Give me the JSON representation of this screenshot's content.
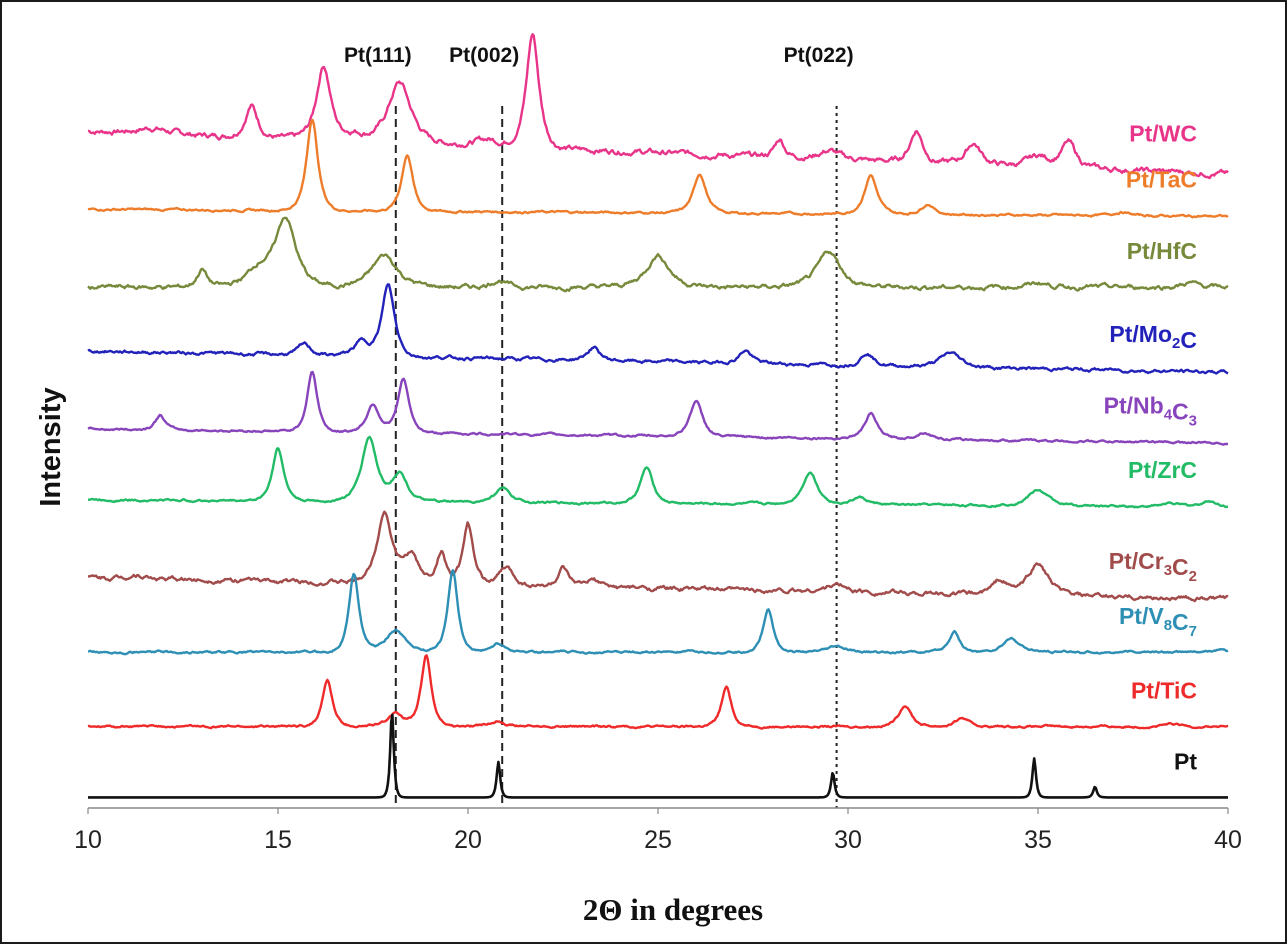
{
  "chart_data": {
    "type": "line",
    "title": "",
    "xlabel": "2Θ in degrees",
    "ylabel": "Intensity",
    "xlim": [
      10,
      40
    ],
    "x_ticks": [
      "10",
      "15",
      "20",
      "25",
      "30",
      "35",
      "40"
    ],
    "grid": false,
    "reference_lines": [
      {
        "label": "Pt(111)",
        "x": 18.1,
        "style": "dashed"
      },
      {
        "label": "Pt(002)",
        "x": 20.9,
        "style": "dashed"
      },
      {
        "label": "Pt(022)",
        "x": 29.7,
        "style": "dotted"
      }
    ],
    "series": [
      {
        "name": "Pt/WC",
        "label_parts": [
          {
            "t": "Pt/WC"
          }
        ],
        "color": "#e8358a",
        "baseline": 8.2,
        "end": 7.6,
        "noise": 0.05,
        "peaks": [
          [
            11.7,
            0.08,
            0.6
          ],
          [
            14.3,
            0.45,
            0.25
          ],
          [
            16.2,
            1.05,
            0.28
          ],
          [
            17.0,
            0.1,
            0.4
          ],
          [
            18.2,
            0.85,
            0.45
          ],
          [
            20.5,
            0.1,
            0.5
          ],
          [
            21.7,
            1.6,
            0.25
          ],
          [
            28.2,
            0.25,
            0.2
          ],
          [
            29.5,
            0.12,
            0.4
          ],
          [
            31.8,
            0.45,
            0.25
          ],
          [
            33.3,
            0.3,
            0.3
          ],
          [
            35.0,
            0.15,
            0.4
          ],
          [
            35.8,
            0.35,
            0.3
          ]
        ]
      },
      {
        "name": "Pt/TaC",
        "label_parts": [
          {
            "t": "Pt/TaC"
          }
        ],
        "color": "#ee7d2b",
        "baseline": 7.1,
        "end": 7.0,
        "noise": 0.02,
        "peaks": [
          [
            15.9,
            1.3,
            0.22
          ],
          [
            18.4,
            0.8,
            0.22
          ],
          [
            26.1,
            0.55,
            0.25
          ],
          [
            30.6,
            0.55,
            0.25
          ],
          [
            32.1,
            0.15,
            0.25
          ],
          [
            37.2,
            0.05,
            0.3
          ]
        ]
      },
      {
        "name": "Pt/HfC",
        "label_parts": [
          {
            "t": "Pt/HfC"
          }
        ],
        "color": "#778a3c",
        "baseline": 6.0,
        "end": 6.0,
        "noise": 0.04,
        "peaks": [
          [
            13.0,
            0.25,
            0.2
          ],
          [
            14.5,
            0.25,
            0.5
          ],
          [
            15.2,
            0.95,
            0.4
          ],
          [
            17.8,
            0.45,
            0.5
          ],
          [
            20.8,
            0.1,
            0.3
          ],
          [
            25.0,
            0.45,
            0.45
          ],
          [
            29.5,
            0.5,
            0.45
          ],
          [
            35.0,
            0.06,
            0.4
          ],
          [
            39.0,
            0.06,
            0.3
          ]
        ]
      },
      {
        "name": "Pt/Mo2C",
        "label_parts": [
          {
            "t": "Pt/Mo"
          },
          {
            "t": "2",
            "sub": true
          },
          {
            "t": "C"
          }
        ],
        "color": "#2222bb",
        "baseline": 5.1,
        "end": 4.8,
        "noise": 0.03,
        "peaks": [
          [
            15.7,
            0.15,
            0.25
          ],
          [
            17.2,
            0.2,
            0.3
          ],
          [
            17.9,
            1.0,
            0.25
          ],
          [
            23.3,
            0.18,
            0.25
          ],
          [
            27.3,
            0.18,
            0.25
          ],
          [
            30.5,
            0.18,
            0.25
          ],
          [
            32.7,
            0.2,
            0.4
          ]
        ]
      },
      {
        "name": "Pt/Nb4C3",
        "label_parts": [
          {
            "t": "Pt/Nb"
          },
          {
            "t": "4",
            "sub": true
          },
          {
            "t": "C"
          },
          {
            "t": "3",
            "sub": true
          }
        ],
        "color": "#8844bb",
        "baseline": 4.0,
        "end": 3.8,
        "noise": 0.02,
        "peaks": [
          [
            11.9,
            0.2,
            0.2
          ],
          [
            15.9,
            0.85,
            0.2
          ],
          [
            17.5,
            0.4,
            0.25
          ],
          [
            18.3,
            0.75,
            0.22
          ],
          [
            26.0,
            0.5,
            0.25
          ],
          [
            30.6,
            0.35,
            0.25
          ],
          [
            32.0,
            0.1,
            0.3
          ]
        ]
      },
      {
        "name": "Pt/ZrC",
        "label_parts": [
          {
            "t": "Pt/ZrC"
          }
        ],
        "color": "#22bb66",
        "baseline": 3.0,
        "end": 2.9,
        "noise": 0.02,
        "peaks": [
          [
            15.0,
            0.75,
            0.22
          ],
          [
            17.4,
            0.9,
            0.3
          ],
          [
            18.2,
            0.4,
            0.3
          ],
          [
            20.9,
            0.2,
            0.3
          ],
          [
            24.7,
            0.5,
            0.25
          ],
          [
            29.0,
            0.45,
            0.3
          ],
          [
            30.3,
            0.1,
            0.3
          ],
          [
            35.0,
            0.22,
            0.4
          ],
          [
            38.5,
            0.05,
            0.3
          ],
          [
            39.5,
            0.08,
            0.3
          ]
        ]
      },
      {
        "name": "Pt/Cr3C2",
        "label_parts": [
          {
            "t": "Pt/Cr"
          },
          {
            "t": "3",
            "sub": true
          },
          {
            "t": "C"
          },
          {
            "t": "2",
            "sub": true
          }
        ],
        "color": "#a24b4b",
        "baseline": 1.9,
        "end": 1.6,
        "noise": 0.04,
        "peaks": [
          [
            11.3,
            0.06,
            0.3
          ],
          [
            17.8,
            1.0,
            0.3
          ],
          [
            18.5,
            0.4,
            0.3
          ],
          [
            19.3,
            0.45,
            0.2
          ],
          [
            20.0,
            0.85,
            0.2
          ],
          [
            21.0,
            0.25,
            0.3
          ],
          [
            22.5,
            0.25,
            0.2
          ],
          [
            23.3,
            0.1,
            0.25
          ],
          [
            29.7,
            0.1,
            0.4
          ],
          [
            34.0,
            0.2,
            0.3
          ],
          [
            35.0,
            0.45,
            0.4
          ]
        ]
      },
      {
        "name": "Pt/V8C7",
        "label_parts": [
          {
            "t": "Pt/V"
          },
          {
            "t": "8",
            "sub": true
          },
          {
            "t": "C"
          },
          {
            "t": "7",
            "sub": true
          }
        ],
        "color": "#2e8fb5",
        "baseline": 0.85,
        "end": 0.85,
        "noise": 0.02,
        "peaks": [
          [
            17.0,
            1.1,
            0.2
          ],
          [
            18.1,
            0.3,
            0.4
          ],
          [
            19.6,
            1.15,
            0.2
          ],
          [
            20.8,
            0.12,
            0.3
          ],
          [
            27.9,
            0.6,
            0.2
          ],
          [
            29.7,
            0.08,
            0.3
          ],
          [
            32.8,
            0.3,
            0.2
          ],
          [
            34.3,
            0.2,
            0.3
          ],
          [
            39.8,
            0.04,
            0.2
          ]
        ]
      },
      {
        "name": "Pt/TiC",
        "label_parts": [
          {
            "t": "Pt/TiC"
          }
        ],
        "color": "#ee2a2a",
        "baseline": -0.2,
        "end": -0.2,
        "noise": 0.02,
        "peaks": [
          [
            16.3,
            0.65,
            0.2
          ],
          [
            18.1,
            0.2,
            0.3
          ],
          [
            18.9,
            1.0,
            0.2
          ],
          [
            20.8,
            0.08,
            0.3
          ],
          [
            26.8,
            0.55,
            0.2
          ],
          [
            31.5,
            0.3,
            0.25
          ],
          [
            33.0,
            0.12,
            0.25
          ],
          [
            38.5,
            0.03,
            0.3
          ]
        ]
      },
      {
        "name": "Pt",
        "label_parts": [
          {
            "t": "Pt"
          }
        ],
        "color": "#111111",
        "baseline": -1.2,
        "end": -1.2,
        "noise": 0.0,
        "peaks": [
          [
            18.0,
            1.2,
            0.07
          ],
          [
            20.8,
            0.5,
            0.07
          ],
          [
            29.6,
            0.35,
            0.07
          ],
          [
            34.9,
            0.55,
            0.07
          ],
          [
            36.5,
            0.15,
            0.07
          ]
        ]
      }
    ]
  }
}
